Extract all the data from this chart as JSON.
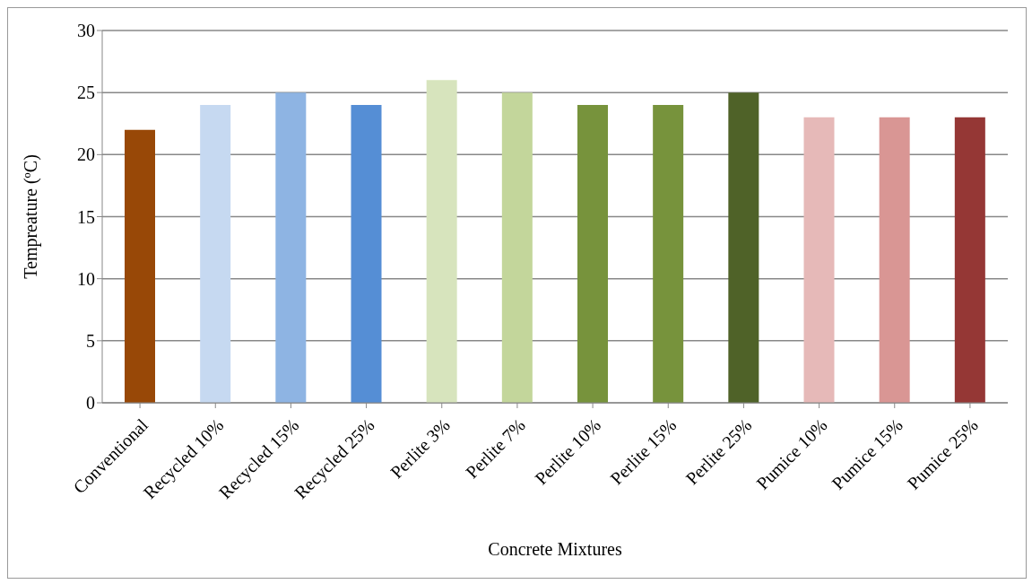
{
  "chart_data": {
    "type": "bar",
    "xlabel": "Concrete Mixtures",
    "ylabel": "Tempreature (ºC)",
    "categories": [
      "Conventional",
      "Recycled 10%",
      "Recycled 15%",
      "Recycled 25%",
      "Perlite 3%",
      "Perlite 7%",
      "Perlite 10%",
      "Perlite 15%",
      "Perlite 25%",
      "Pumice 10%",
      "Pumice 15%",
      "Pumice 25%"
    ],
    "values": [
      22,
      24,
      25,
      24,
      26,
      25,
      24,
      24,
      25,
      23,
      23,
      23
    ],
    "colors": [
      "#984807",
      "#c6d9f1",
      "#8eb4e3",
      "#558ed5",
      "#d7e4bd",
      "#c3d69b",
      "#77933c",
      "#77933c",
      "#4f6228",
      "#e6b9b8",
      "#d99694",
      "#953735"
    ],
    "ylim": [
      0,
      30
    ],
    "yticks": [
      0,
      5,
      10,
      15,
      20,
      25,
      30
    ],
    "grid": "y"
  }
}
